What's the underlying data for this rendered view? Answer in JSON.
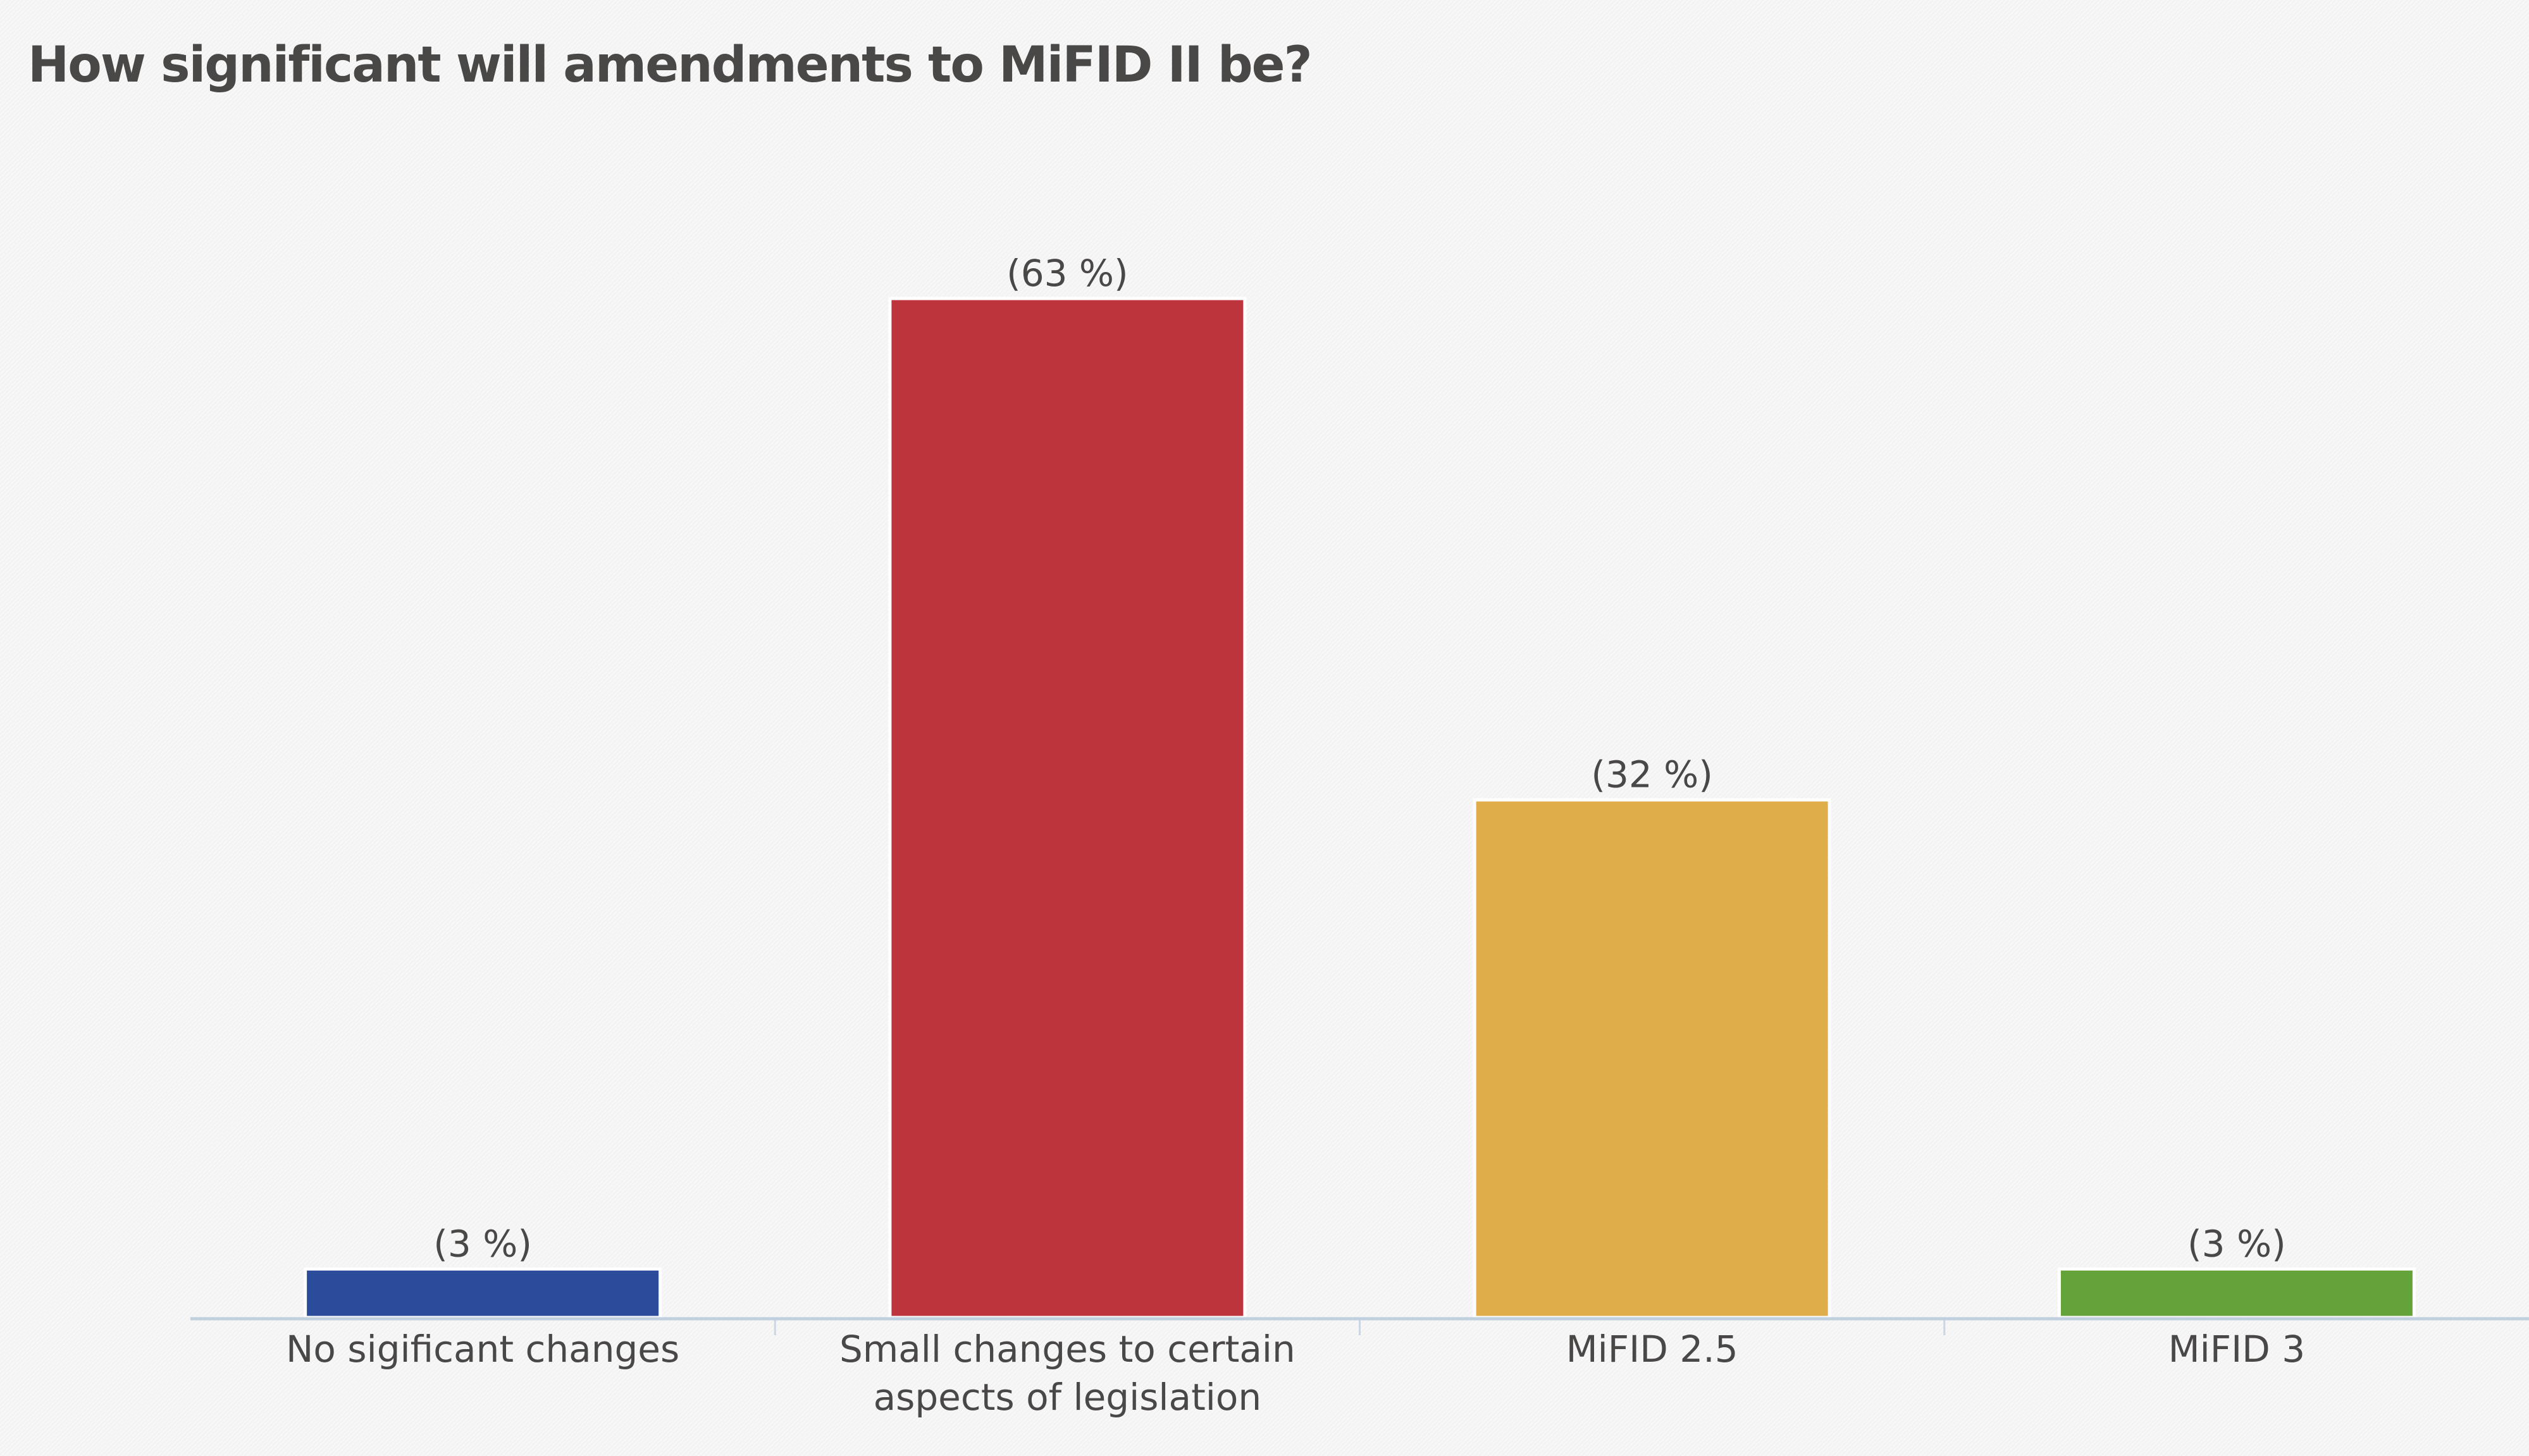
{
  "chart_data": {
    "type": "bar",
    "title": "How significant will amendments to MiFID II be?",
    "categories": [
      "No sigificant changes",
      "Small changes to certain aspects of legislation",
      "MiFID 2.5",
      "MiFID 3"
    ],
    "category_lines": [
      [
        "No sigificant changes"
      ],
      [
        "Small changes to certain",
        "aspects of legislation"
      ],
      [
        "MiFID 2.5"
      ],
      [
        "MiFID 3"
      ]
    ],
    "values": [
      3,
      63,
      32,
      3
    ],
    "data_labels": [
      "(3 %)",
      "(63 %)",
      "(32 %)",
      "(3 %)"
    ],
    "colors": [
      "#2b4c9b",
      "#bd343c",
      "#e0ad4b",
      "#64a33a"
    ],
    "xlabel": "",
    "ylabel": "",
    "ylim": [
      0,
      70
    ],
    "grid": false,
    "legend": "none"
  }
}
